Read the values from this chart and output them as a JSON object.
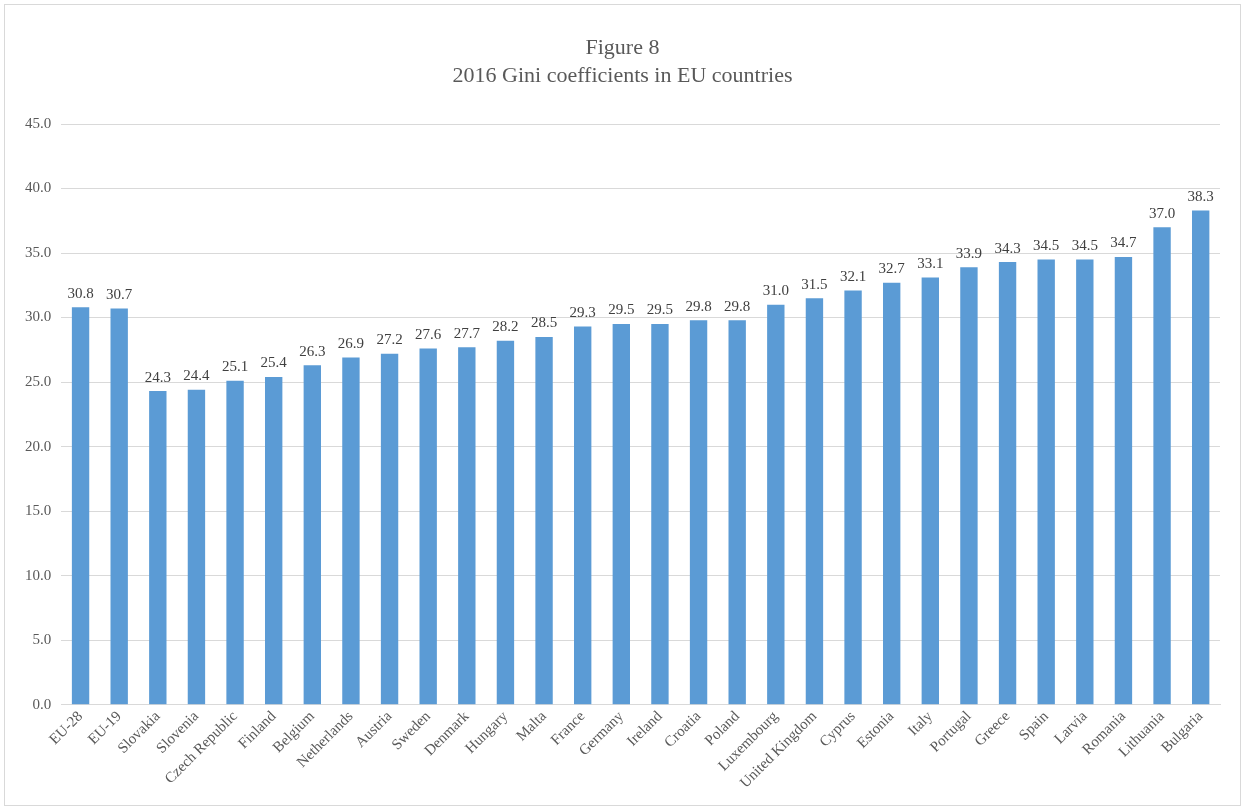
{
  "chart_data": {
    "type": "bar",
    "title": "Figure 8",
    "subtitle": "2016 Gini coefficients in EU countries",
    "categories": [
      "EU-28",
      "EU-19",
      "Slovakia",
      "Slovenia",
      "Czech Republic",
      "Finland",
      "Belgium",
      "Netherlands",
      "Austria",
      "Sweden",
      "Denmark",
      "Hungary",
      "Malta",
      "France",
      "Germany",
      "Ireland",
      "Croatia",
      "Poland",
      "Luxembourg",
      "United Kingdom",
      "Cyprus",
      "Estonia",
      "Italy",
      "Portugal",
      "Greece",
      "Spain",
      "Larvia",
      "Romania",
      "Lithuania",
      "Bulgaria"
    ],
    "values": [
      30.8,
      30.7,
      24.3,
      24.4,
      25.1,
      25.4,
      26.3,
      26.9,
      27.2,
      27.6,
      27.7,
      28.2,
      28.5,
      29.3,
      29.5,
      29.5,
      29.8,
      29.8,
      31.0,
      31.5,
      32.1,
      32.7,
      33.1,
      33.9,
      34.3,
      34.5,
      34.5,
      34.7,
      37.0,
      38.3
    ],
    "value_labels": [
      "30.8",
      "30.7",
      "24.3",
      "24.4",
      "25.1",
      "25.4",
      "26.3",
      "26.9",
      "27.2",
      "27.6",
      "27.7",
      "28.2",
      "28.5",
      "29.3",
      "29.5",
      "29.5",
      "29.8",
      "29.8",
      "31.0",
      "31.5",
      "32.1",
      "32.7",
      "33.1",
      "33.9",
      "34.3",
      "34.5",
      "34.5",
      "34.7",
      "37.0",
      "38.3"
    ],
    "color": "#5b9bd5",
    "ylim": [
      0,
      45
    ],
    "yticks": [
      {
        "value": 0,
        "label": "0.0"
      },
      {
        "value": 5,
        "label": "5.0"
      },
      {
        "value": 10,
        "label": "10.0"
      },
      {
        "value": 15,
        "label": "15.0"
      },
      {
        "value": 20,
        "label": "20.0"
      },
      {
        "value": 25,
        "label": "25.0"
      },
      {
        "value": 30,
        "label": "30.0"
      },
      {
        "value": 35,
        "label": "35.0"
      },
      {
        "value": 40,
        "label": "40.0"
      },
      {
        "value": 45,
        "label": "45.0"
      }
    ],
    "grid": "y"
  }
}
